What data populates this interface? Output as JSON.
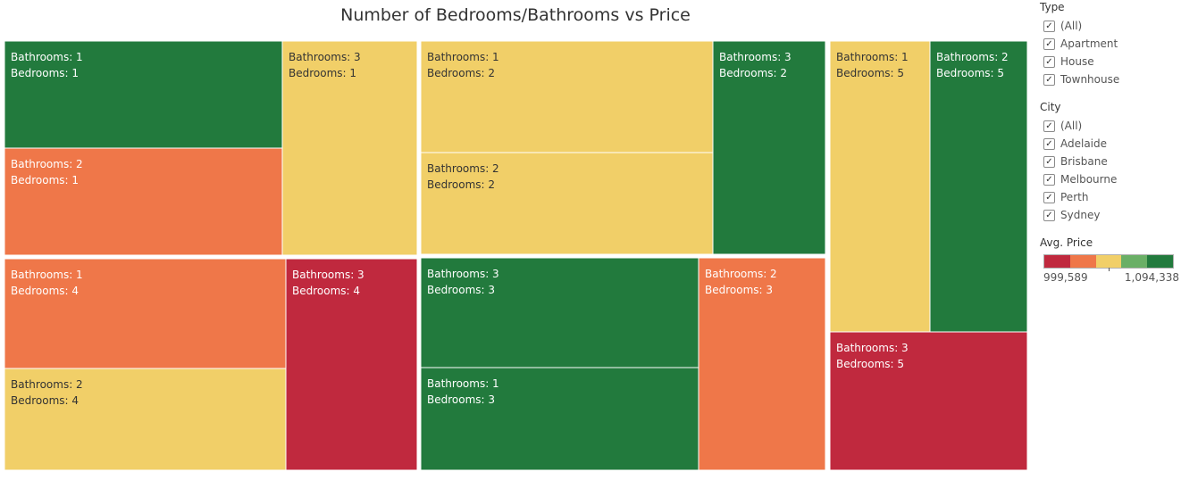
{
  "chart_data": {
    "type": "treemap",
    "title": "Number of Bedrooms/Bathrooms vs Price",
    "label_templates": {
      "bathrooms": "Bathrooms: ",
      "bedrooms": "Bedrooms: "
    },
    "tiles": [
      {
        "bathrooms": 1,
        "bedrooms": 1,
        "color": "#227a3d"
      },
      {
        "bathrooms": 2,
        "bedrooms": 1,
        "color": "#ef7749"
      },
      {
        "bathrooms": 3,
        "bedrooms": 1,
        "color": "#f1cf68"
      },
      {
        "bathrooms": 1,
        "bedrooms": 4,
        "color": "#ef7749"
      },
      {
        "bathrooms": 2,
        "bedrooms": 4,
        "color": "#f1cf68"
      },
      {
        "bathrooms": 3,
        "bedrooms": 4,
        "color": "#c0293e"
      },
      {
        "bathrooms": 1,
        "bedrooms": 2,
        "color": "#f1cf68"
      },
      {
        "bathrooms": 2,
        "bedrooms": 2,
        "color": "#f1cf68"
      },
      {
        "bathrooms": 3,
        "bedrooms": 2,
        "color": "#227a3d"
      },
      {
        "bathrooms": 3,
        "bedrooms": 3,
        "color": "#227a3d"
      },
      {
        "bathrooms": 1,
        "bedrooms": 3,
        "color": "#227a3d"
      },
      {
        "bathrooms": 2,
        "bedrooms": 3,
        "color": "#ef7749"
      },
      {
        "bathrooms": 1,
        "bedrooms": 5,
        "color": "#f1cf68"
      },
      {
        "bathrooms": 2,
        "bedrooms": 5,
        "color": "#227a3d"
      },
      {
        "bathrooms": 3,
        "bedrooms": 5,
        "color": "#c0293e"
      }
    ],
    "color_legend": {
      "title": "Avg. Price",
      "min_label": "999,589",
      "max_label": "1,094,338",
      "colors": [
        "#c0293e",
        "#ef7749",
        "#f1cf68",
        "#6aaf66",
        "#227a3d"
      ]
    }
  },
  "filters": {
    "type": {
      "title": "Type",
      "items": [
        {
          "label": "(All)",
          "checked": true
        },
        {
          "label": "Apartment",
          "checked": true
        },
        {
          "label": "House",
          "checked": true
        },
        {
          "label": "Townhouse",
          "checked": true
        }
      ]
    },
    "city": {
      "title": "City",
      "items": [
        {
          "label": "(All)",
          "checked": true
        },
        {
          "label": "Adelaide",
          "checked": true
        },
        {
          "label": "Brisbane",
          "checked": true
        },
        {
          "label": "Melbourne",
          "checked": true
        },
        {
          "label": "Perth",
          "checked": true
        },
        {
          "label": "Sydney",
          "checked": true
        }
      ]
    }
  },
  "check_glyph": "✓"
}
